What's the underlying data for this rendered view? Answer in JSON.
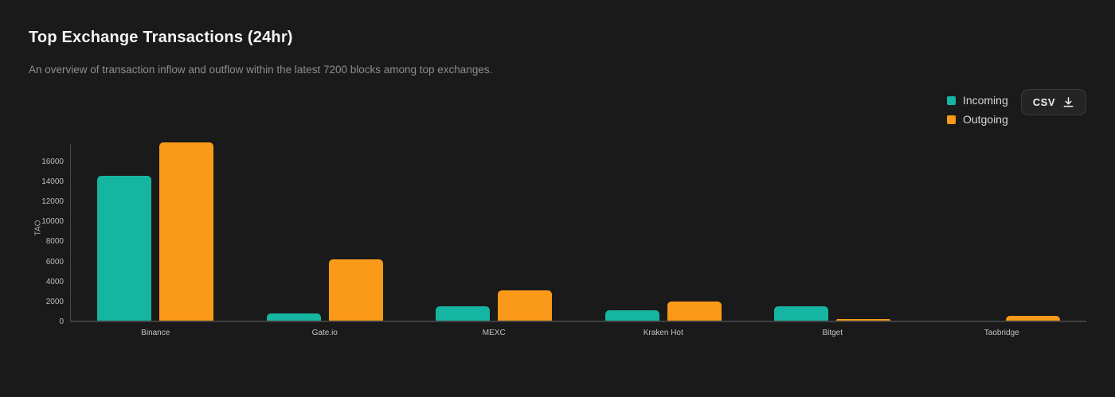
{
  "page": {
    "title": "Top Exchange Transactions (24hr)",
    "subtitle": "An overview of transaction inflow and outflow within the latest 7200 blocks among top exchanges."
  },
  "legend": [
    {
      "label": "Incoming",
      "color": "#16b5a2"
    },
    {
      "label": "Outgoing",
      "color": "#fb9a18"
    }
  ],
  "csv_button": {
    "label": "CSV",
    "icon": "download-icon"
  },
  "chart_data": {
    "type": "bar",
    "title": "Top Exchange Transactions (24hr)",
    "categories": [
      "Binance",
      "Gate.io",
      "MEXC",
      "Kraken Hot",
      "Bitget",
      "Taobridge"
    ],
    "series": [
      {
        "name": "Incoming",
        "color": "#16b5a2",
        "values": [
          14500,
          750,
          1400,
          1000,
          1450,
          0
        ]
      },
      {
        "name": "Outgoing",
        "color": "#fb9a18",
        "values": [
          17800,
          6100,
          3050,
          1900,
          160,
          450
        ]
      }
    ],
    "xlabel": "",
    "ylabel": "TAO",
    "ylim": [
      0,
      17800
    ],
    "yticks": [
      0,
      2000,
      4000,
      6000,
      8000,
      10000,
      12000,
      14000,
      16000
    ],
    "grid": false,
    "legend_position": "top-right"
  }
}
